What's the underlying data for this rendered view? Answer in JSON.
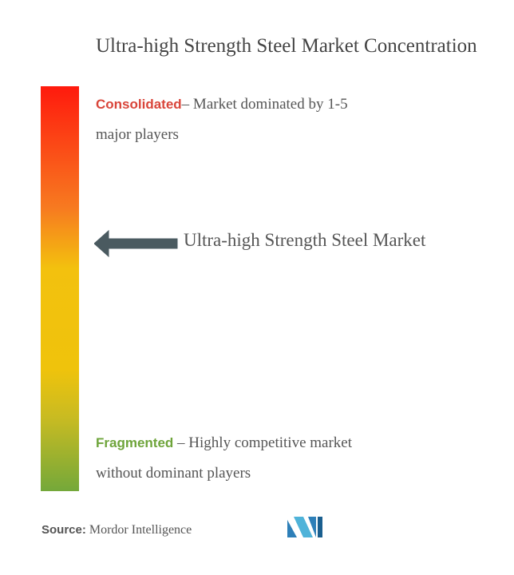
{
  "title": "Ultra-high Strength Steel Market Concentration",
  "consolidated": {
    "label": "Consolidated",
    "text": "– Market dominated by 1-5",
    "text2": "major players"
  },
  "marker": {
    "label": "Ultra-high Strength Steel Market"
  },
  "fragmented": {
    "label": "Fragmented",
    "text": " – Highly competitive market",
    "text2": "without dominant players"
  },
  "source": {
    "label": "Source:",
    "text": " Mordor Intelligence"
  }
}
